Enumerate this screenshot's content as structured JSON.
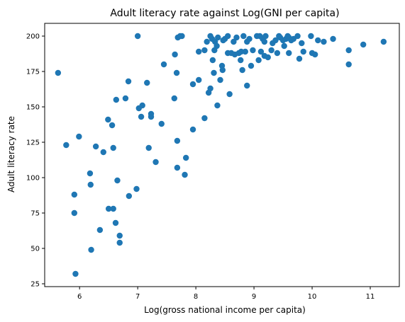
{
  "chart_data": {
    "type": "scatter",
    "title": "Adult literacy rate against Log(GNI per capita)",
    "xlabel": "Log(gross national income per capita)",
    "ylabel": "Adult literacy rate",
    "xlim": [
      5.4,
      11.5
    ],
    "ylim": [
      23,
      209
    ],
    "xticks": [
      6,
      7,
      8,
      9,
      10,
      11
    ],
    "yticks": [
      25,
      50,
      75,
      100,
      125,
      150,
      175,
      200
    ],
    "grid": false,
    "legend": "none",
    "marker_color": "#1f77b4",
    "series": [
      {
        "points": [
          [
            5.63,
            174
          ],
          [
            5.77,
            123
          ],
          [
            5.91,
            88
          ],
          [
            5.91,
            75
          ],
          [
            5.93,
            32
          ],
          [
            5.99,
            129
          ],
          [
            6.18,
            103
          ],
          [
            6.19,
            95
          ],
          [
            6.2,
            49
          ],
          [
            6.28,
            122
          ],
          [
            6.35,
            63
          ],
          [
            6.41,
            118
          ],
          [
            6.49,
            141
          ],
          [
            6.5,
            78
          ],
          [
            6.56,
            137
          ],
          [
            6.58,
            78
          ],
          [
            6.58,
            121
          ],
          [
            6.62,
            68
          ],
          [
            6.63,
            155
          ],
          [
            6.65,
            98
          ],
          [
            6.69,
            59
          ],
          [
            6.69,
            54
          ],
          [
            6.79,
            156
          ],
          [
            6.84,
            168
          ],
          [
            6.85,
            87
          ],
          [
            6.98,
            92
          ],
          [
            7.0,
            200
          ],
          [
            7.02,
            149
          ],
          [
            7.06,
            143
          ],
          [
            7.08,
            151
          ],
          [
            7.16,
            167
          ],
          [
            7.19,
            121
          ],
          [
            7.23,
            143
          ],
          [
            7.23,
            145
          ],
          [
            7.31,
            111
          ],
          [
            7.41,
            138
          ],
          [
            7.45,
            180
          ],
          [
            7.63,
            156
          ],
          [
            7.64,
            187
          ],
          [
            7.67,
            174
          ],
          [
            7.68,
            126
          ],
          [
            7.69,
            199
          ],
          [
            7.68,
            107
          ],
          [
            7.73,
            200
          ],
          [
            7.76,
            200
          ],
          [
            7.81,
            102
          ],
          [
            7.83,
            114
          ],
          [
            7.95,
            166
          ],
          [
            7.95,
            134
          ],
          [
            8.05,
            189
          ],
          [
            8.05,
            169
          ],
          [
            8.15,
            190
          ],
          [
            8.15,
            142
          ],
          [
            8.19,
            196
          ],
          [
            8.22,
            160
          ],
          [
            8.25,
            200
          ],
          [
            8.25,
            163
          ],
          [
            8.28,
            198
          ],
          [
            8.29,
            183
          ],
          [
            8.31,
            174
          ],
          [
            8.32,
            190
          ],
          [
            8.33,
            196
          ],
          [
            8.36,
            193
          ],
          [
            8.37,
            151
          ],
          [
            8.38,
            199
          ],
          [
            8.42,
            169
          ],
          [
            8.45,
            179
          ],
          [
            8.46,
            176
          ],
          [
            8.47,
            197
          ],
          [
            8.5,
            198
          ],
          [
            8.55,
            200
          ],
          [
            8.55,
            188
          ],
          [
            8.58,
            159
          ],
          [
            8.61,
            188
          ],
          [
            8.65,
            196
          ],
          [
            8.67,
            187
          ],
          [
            8.7,
            199
          ],
          [
            8.74,
            188
          ],
          [
            8.77,
            183
          ],
          [
            8.78,
            189
          ],
          [
            8.8,
            176
          ],
          [
            8.82,
            200
          ],
          [
            8.85,
            189
          ],
          [
            8.88,
            196
          ],
          [
            8.88,
            165
          ],
          [
            8.92,
            198
          ],
          [
            8.95,
            179
          ],
          [
            8.98,
            190
          ],
          [
            9.05,
            200
          ],
          [
            9.08,
            183
          ],
          [
            9.1,
            200
          ],
          [
            9.12,
            189
          ],
          [
            9.15,
            198
          ],
          [
            9.18,
            196
          ],
          [
            9.18,
            186
          ],
          [
            9.2,
            200
          ],
          [
            9.24,
            185
          ],
          [
            9.3,
            190
          ],
          [
            9.32,
            195
          ],
          [
            9.37,
            197
          ],
          [
            9.4,
            188
          ],
          [
            9.43,
            200
          ],
          [
            9.45,
            199
          ],
          [
            9.5,
            197
          ],
          [
            9.52,
            193
          ],
          [
            9.55,
            198
          ],
          [
            9.58,
            200
          ],
          [
            9.6,
            199
          ],
          [
            9.6,
            188
          ],
          [
            9.64,
            197
          ],
          [
            9.68,
            198
          ],
          [
            9.75,
            200
          ],
          [
            9.78,
            184
          ],
          [
            9.82,
            195
          ],
          [
            9.85,
            189
          ],
          [
            9.98,
            200
          ],
          [
            10.0,
            188
          ],
          [
            10.05,
            187
          ],
          [
            10.1,
            197
          ],
          [
            10.2,
            196
          ],
          [
            10.36,
            198
          ],
          [
            10.63,
            190
          ],
          [
            10.63,
            180
          ],
          [
            10.88,
            194
          ],
          [
            11.23,
            196
          ]
        ]
      }
    ]
  }
}
